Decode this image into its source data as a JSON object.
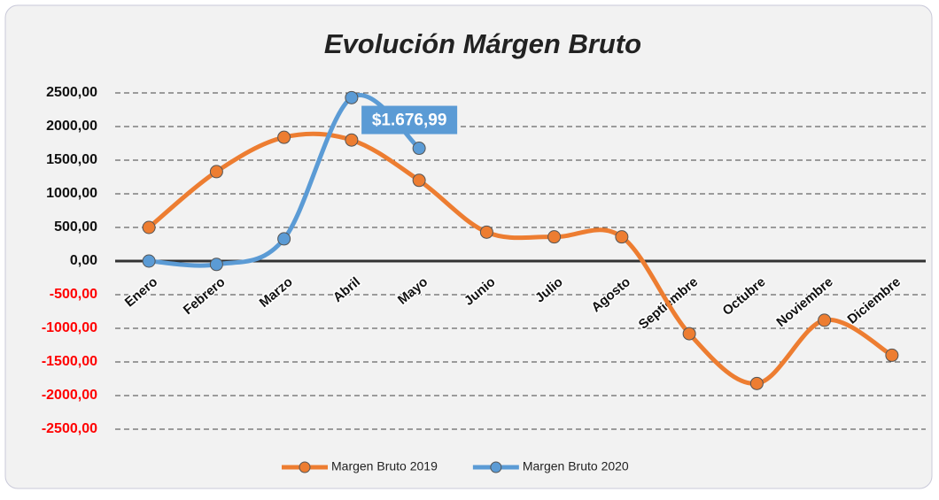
{
  "chart_data": {
    "type": "line",
    "title": "Evolución Márgen Bruto",
    "categories": [
      "Enero",
      "Febrero",
      "Marzo",
      "Abril",
      "Mayo",
      "Junio",
      "Julio",
      "Agosto",
      "Septiembre",
      "Octubre",
      "Noviembre",
      "Diciembre"
    ],
    "series": [
      {
        "name": "Margen Bruto 2019",
        "color": "#ed7d31",
        "values": [
          500,
          1330,
          1840,
          1800,
          1200,
          430,
          360,
          360,
          -1080,
          -1820,
          -880,
          -1400
        ]
      },
      {
        "name": "Margen Bruto 2020",
        "color": "#5b9bd5",
        "values": [
          0,
          -50,
          330,
          2430,
          1676.99,
          null,
          null,
          null,
          null,
          null,
          null,
          null
        ],
        "value_labels": [
          null,
          null,
          null,
          null,
          "$1.676,99",
          null,
          null,
          null,
          null,
          null,
          null,
          null
        ]
      }
    ],
    "ylim": [
      -2500,
      2500
    ],
    "yticks": [
      {
        "value": 2500,
        "label": "2500,00"
      },
      {
        "value": 2000,
        "label": "2000,00"
      },
      {
        "value": 1500,
        "label": "1500,00"
      },
      {
        "value": 1000,
        "label": "1000,00"
      },
      {
        "value": 500,
        "label": "500,00"
      },
      {
        "value": 0,
        "label": "0,00"
      },
      {
        "value": -500,
        "label": "-500,00"
      },
      {
        "value": -1000,
        "label": "-1000,00"
      },
      {
        "value": -1500,
        "label": "-1500,00"
      },
      {
        "value": -2000,
        "label": "-2000,00"
      },
      {
        "value": -2500,
        "label": "-2500,00"
      }
    ],
    "grid": true,
    "smooth": true,
    "legend": "bottom"
  }
}
